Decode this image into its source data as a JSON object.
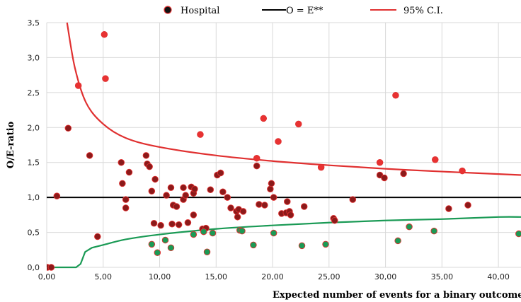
{
  "chart_data": {
    "type": "scatter",
    "xlabel": "Expected number of events for a binary outcome",
    "ylabel": "O/E-ratio",
    "xlim": [
      0,
      42
    ],
    "ylim": [
      0,
      3.5
    ],
    "grid": true,
    "legend_position": "top",
    "x_ticks": [
      {
        "value": 0,
        "label": "0,00"
      },
      {
        "value": 5,
        "label": "5,00"
      },
      {
        "value": 10,
        "label": "10,00"
      },
      {
        "value": 15,
        "label": "15,00"
      },
      {
        "value": 20,
        "label": "20,00"
      },
      {
        "value": 25,
        "label": "25,00"
      },
      {
        "value": 30,
        "label": "30,00"
      },
      {
        "value": 35,
        "label": "35,00"
      },
      {
        "value": 40,
        "label": "40,00"
      }
    ],
    "y_ticks": [
      {
        "value": 0,
        "label": "0,0"
      },
      {
        "value": 0.5,
        "label": "0,5"
      },
      {
        "value": 1.0,
        "label": "1,0"
      },
      {
        "value": 1.5,
        "label": "1,5"
      },
      {
        "value": 2.0,
        "label": "2,0"
      },
      {
        "value": 2.5,
        "label": "2,5"
      },
      {
        "value": 3.0,
        "label": "3,0"
      },
      {
        "value": 3.5,
        "label": "3,5"
      }
    ],
    "legend": [
      {
        "label": "Hospital",
        "kind": "marker",
        "color": "#111111",
        "edge": "#e03030"
      },
      {
        "label": "O = E**",
        "kind": "line",
        "color": "#000000"
      },
      {
        "label": "95% C.I.",
        "kind": "line",
        "color": "#e03030"
      }
    ],
    "colors": {
      "inside": "#8b1a1a",
      "above": "#e83232",
      "below": "#1a9a55",
      "edge": "#e03030",
      "upper_ci": "#e03030",
      "lower_ci": "#1a9a55",
      "reference": "#000000"
    },
    "reference_line_y": 1.0,
    "upper_ci": [
      [
        1.8,
        3.5
      ],
      [
        2.5,
        2.85
      ],
      [
        3.5,
        2.35
      ],
      [
        5,
        2.05
      ],
      [
        7,
        1.85
      ],
      [
        10,
        1.72
      ],
      [
        15,
        1.6
      ],
      [
        20,
        1.52
      ],
      [
        25,
        1.46
      ],
      [
        30,
        1.41
      ],
      [
        35,
        1.37
      ],
      [
        42,
        1.32
      ]
    ],
    "lower_ci": [
      [
        0,
        0
      ],
      [
        2.6,
        0
      ],
      [
        3.0,
        0.05
      ],
      [
        3.4,
        0.22
      ],
      [
        4.0,
        0.28
      ],
      [
        5,
        0.32
      ],
      [
        7,
        0.4
      ],
      [
        10,
        0.47
      ],
      [
        15,
        0.55
      ],
      [
        20,
        0.6
      ],
      [
        25,
        0.64
      ],
      [
        30,
        0.67
      ],
      [
        35,
        0.69
      ],
      [
        40,
        0.72
      ],
      [
        42,
        0.72
      ]
    ],
    "series": [
      {
        "group": "inside",
        "points": [
          [
            0.05,
            0
          ],
          [
            0.4,
            0
          ],
          [
            0.9,
            1.02
          ],
          [
            1.9,
            1.99
          ],
          [
            3.8,
            1.6
          ],
          [
            4.5,
            0.44
          ],
          [
            6.6,
            1.5
          ],
          [
            6.7,
            1.2
          ],
          [
            7.0,
            0.97
          ],
          [
            7.0,
            0.85
          ],
          [
            7.3,
            1.36
          ],
          [
            8.8,
            1.6
          ],
          [
            8.9,
            1.48
          ],
          [
            9.1,
            1.44
          ],
          [
            9.3,
            1.09
          ],
          [
            9.6,
            1.26
          ],
          [
            9.5,
            0.63
          ],
          [
            10.1,
            0.6
          ],
          [
            10.6,
            1.03
          ],
          [
            11.0,
            1.14
          ],
          [
            11.1,
            0.62
          ],
          [
            11.2,
            0.89
          ],
          [
            11.5,
            0.87
          ],
          [
            11.7,
            0.61
          ],
          [
            12.1,
            1.14
          ],
          [
            12.1,
            0.97
          ],
          [
            12.3,
            1.03
          ],
          [
            12.5,
            0.64
          ],
          [
            12.8,
            1.15
          ],
          [
            13.0,
            1.06
          ],
          [
            13.0,
            0.75
          ],
          [
            13.1,
            1.12
          ],
          [
            13.8,
            0.55
          ],
          [
            14.1,
            0.56
          ],
          [
            14.5,
            1.11
          ],
          [
            15.1,
            1.32
          ],
          [
            15.4,
            1.35
          ],
          [
            15.6,
            1.08
          ],
          [
            16.0,
            1.0
          ],
          [
            16.3,
            0.85
          ],
          [
            16.8,
            0.8
          ],
          [
            16.9,
            0.72
          ],
          [
            17.0,
            0.83
          ],
          [
            17.4,
            0.8
          ],
          [
            18.6,
            1.45
          ],
          [
            18.8,
            0.9
          ],
          [
            19.3,
            0.89
          ],
          [
            19.8,
            1.12
          ],
          [
            19.9,
            1.2
          ],
          [
            20.1,
            1.0
          ],
          [
            20.8,
            0.77
          ],
          [
            21.2,
            0.78
          ],
          [
            21.3,
            0.94
          ],
          [
            21.5,
            0.8
          ],
          [
            21.6,
            0.75
          ],
          [
            22.8,
            0.87
          ],
          [
            25.4,
            0.7
          ],
          [
            25.5,
            0.67
          ],
          [
            27.1,
            0.97
          ],
          [
            29.5,
            1.32
          ],
          [
            29.9,
            1.28
          ],
          [
            31.6,
            1.34
          ],
          [
            35.6,
            0.84
          ],
          [
            37.3,
            0.89
          ]
        ]
      },
      {
        "group": "above",
        "points": [
          [
            2.8,
            2.6
          ],
          [
            5.1,
            3.33
          ],
          [
            5.2,
            2.7
          ],
          [
            13.6,
            1.9
          ],
          [
            18.6,
            1.56
          ],
          [
            19.2,
            2.13
          ],
          [
            20.5,
            1.8
          ],
          [
            22.3,
            2.05
          ],
          [
            24.3,
            1.43
          ],
          [
            29.5,
            1.5
          ],
          [
            30.9,
            2.46
          ],
          [
            34.4,
            1.54
          ],
          [
            36.8,
            1.38
          ]
        ]
      },
      {
        "group": "below",
        "points": [
          [
            9.3,
            0.33
          ],
          [
            9.8,
            0.21
          ],
          [
            10.5,
            0.39
          ],
          [
            11.0,
            0.28
          ],
          [
            13.0,
            0.47
          ],
          [
            13.9,
            0.51
          ],
          [
            14.2,
            0.22
          ],
          [
            14.7,
            0.49
          ],
          [
            17.1,
            0.53
          ],
          [
            17.3,
            0.52
          ],
          [
            18.3,
            0.32
          ],
          [
            20.1,
            0.49
          ],
          [
            22.6,
            0.31
          ],
          [
            24.7,
            0.33
          ],
          [
            31.1,
            0.38
          ],
          [
            32.1,
            0.58
          ],
          [
            34.3,
            0.52
          ],
          [
            41.8,
            0.48
          ]
        ]
      }
    ]
  }
}
